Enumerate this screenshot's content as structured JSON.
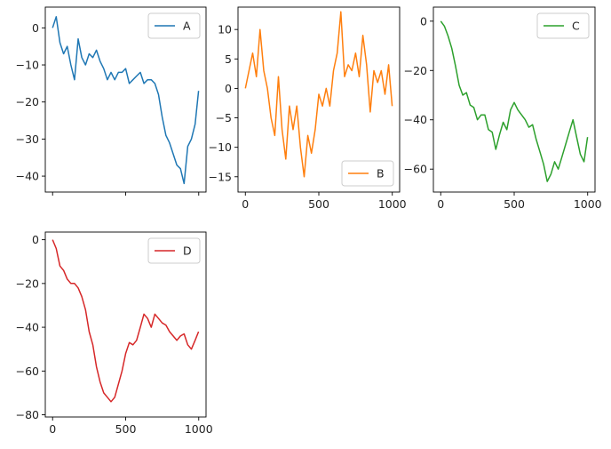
{
  "chart_data": [
    {
      "type": "line",
      "series": [
        {
          "name": "A",
          "color": "#1f77b4",
          "x": [
            0,
            25,
            50,
            75,
            100,
            125,
            150,
            175,
            200,
            225,
            250,
            275,
            300,
            325,
            350,
            375,
            400,
            425,
            450,
            475,
            500,
            525,
            550,
            575,
            600,
            625,
            650,
            675,
            700,
            725,
            750,
            775,
            800,
            825,
            850,
            875,
            900,
            925,
            950,
            975,
            999
          ],
          "y": [
            0,
            3,
            -4,
            -7,
            -5,
            -10,
            -14,
            -3,
            -8,
            -10,
            -7,
            -8,
            -6,
            -9,
            -11,
            -14,
            -12,
            -14,
            -12,
            -12,
            -11,
            -15,
            -14,
            -13,
            -12,
            -15,
            -14,
            -14,
            -15,
            -18,
            -24,
            -29,
            -31,
            -34,
            -37,
            -38,
            -42,
            -32,
            -30,
            -26,
            -17
          ]
        }
      ],
      "x_ticks": [
        "",
        "",
        "",
        ""
      ],
      "y_ticks": [
        "0",
        "−10",
        "−20",
        "−30",
        "−40"
      ],
      "xlim": [
        -50,
        1050
      ],
      "ylim": [
        -44.3,
        5.6
      ],
      "legend_loc": "upper right"
    },
    {
      "type": "line",
      "series": [
        {
          "name": "B",
          "color": "#ff7f0e",
          "x": [
            0,
            25,
            50,
            75,
            100,
            125,
            150,
            175,
            200,
            225,
            250,
            275,
            300,
            325,
            350,
            375,
            400,
            425,
            450,
            475,
            500,
            525,
            550,
            575,
            600,
            625,
            650,
            675,
            700,
            725,
            750,
            775,
            800,
            825,
            850,
            875,
            900,
            925,
            950,
            975,
            999
          ],
          "y": [
            0,
            3,
            6,
            2,
            10,
            3,
            0,
            -5,
            -8,
            2,
            -7,
            -12,
            -3,
            -7,
            -3,
            -10,
            -15,
            -8,
            -11,
            -7,
            -1,
            -3,
            0,
            -3,
            3,
            6,
            13,
            2,
            4,
            3,
            6,
            2,
            9,
            4,
            -4,
            3,
            1,
            3,
            -1,
            4,
            -3
          ]
        }
      ],
      "x_ticks": [
        "0",
        "500",
        "1000"
      ],
      "y_ticks": [
        "10",
        "5",
        "0",
        "−5",
        "−10",
        "−15"
      ],
      "xlim": [
        -50,
        1050
      ],
      "ylim": [
        -17.6,
        13.8
      ],
      "legend_loc": "lower right"
    },
    {
      "type": "line",
      "series": [
        {
          "name": "C",
          "color": "#2ca02c",
          "x": [
            0,
            25,
            50,
            75,
            100,
            125,
            150,
            175,
            200,
            225,
            250,
            275,
            300,
            325,
            350,
            375,
            400,
            425,
            450,
            475,
            500,
            525,
            550,
            575,
            600,
            625,
            650,
            675,
            700,
            725,
            750,
            775,
            800,
            825,
            850,
            875,
            900,
            925,
            950,
            975,
            999
          ],
          "y": [
            0,
            -2,
            -6,
            -11,
            -18,
            -26,
            -30,
            -29,
            -34,
            -35,
            -40,
            -38,
            -38,
            -44,
            -45,
            -52,
            -46,
            -41,
            -44,
            -36,
            -33,
            -36,
            -38,
            -40,
            -43,
            -42,
            -48,
            -53,
            -58,
            -65,
            -62,
            -57,
            -60,
            -55,
            -50,
            -45,
            -40,
            -47,
            -54,
            -57,
            -47
          ]
        }
      ],
      "x_ticks": [
        "0",
        "500",
        "1000"
      ],
      "y_ticks": [
        "0",
        "−20",
        "−40",
        "−60"
      ],
      "xlim": [
        -50,
        1050
      ],
      "ylim": [
        -69.3,
        5.7
      ],
      "legend_loc": "upper right"
    },
    {
      "type": "line",
      "series": [
        {
          "name": "D",
          "color": "#d62728",
          "x": [
            0,
            25,
            50,
            75,
            100,
            125,
            150,
            175,
            200,
            225,
            250,
            275,
            300,
            325,
            350,
            375,
            400,
            425,
            450,
            475,
            500,
            525,
            550,
            575,
            600,
            625,
            650,
            675,
            700,
            725,
            750,
            775,
            800,
            825,
            850,
            875,
            900,
            925,
            950,
            975,
            999
          ],
          "y": [
            0,
            -4,
            -12,
            -14,
            -18,
            -20,
            -20,
            -22,
            -26,
            -32,
            -42,
            -48,
            -58,
            -65,
            -70,
            -72,
            -74,
            -72,
            -66,
            -60,
            -52,
            -47,
            -48,
            -46,
            -40,
            -34,
            -36,
            -40,
            -34,
            -36,
            -38,
            -39,
            -42,
            -44,
            -46,
            -44,
            -43,
            -48,
            -50,
            -46,
            -42
          ]
        }
      ],
      "x_ticks": [
        "0",
        "500",
        "1000"
      ],
      "y_ticks": [
        "0",
        "−20",
        "−40",
        "−60",
        "−80"
      ],
      "xlim": [
        -50,
        1050
      ],
      "ylim": [
        -81,
        3.5
      ],
      "legend_loc": "upper right"
    }
  ]
}
